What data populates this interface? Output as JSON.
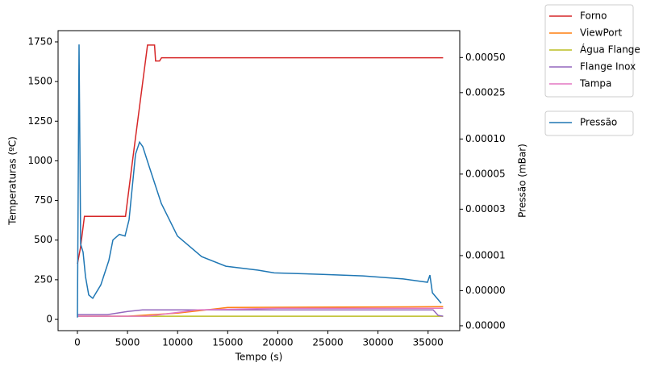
{
  "chart_data": {
    "type": "line",
    "xlabel": "Tempo (s)",
    "ylabel": "Temperaturas (ºC)",
    "y2label": "Pressão (mBar)",
    "xlim": [
      -1930,
      38160
    ],
    "xticks": [
      0,
      5000,
      10000,
      15000,
      20000,
      25000,
      30000,
      35000
    ],
    "ylim": [
      -71,
      1821
    ],
    "yticks": [
      0,
      250,
      500,
      750,
      1000,
      1250,
      1500,
      1750
    ],
    "y2scale": "log",
    "y2lim": [
      2.27e-06,
      0.00085
    ],
    "y2ticks": [
      {
        "value": 0.0005,
        "label": "0.00050"
      },
      {
        "value": 0.00025,
        "label": "0.00025"
      },
      {
        "value": 0.0001,
        "label": "0.00010"
      },
      {
        "value": 5e-05,
        "label": "0.00005"
      },
      {
        "value": 2.5e-05,
        "label": "0.00003"
      },
      {
        "value": 1e-05,
        "label": "0.00001"
      },
      {
        "value": 5e-06,
        "label": "0.00000"
      },
      {
        "value": 2.5e-06,
        "label": "0.00000"
      }
    ],
    "legend": "outside upper right",
    "series": [
      {
        "name": "Forno",
        "color": "#d62728",
        "x": [
          0,
          300,
          700,
          4800,
          5500,
          7000,
          7700,
          7800,
          8200,
          8400,
          36500
        ],
        "values": [
          350,
          450,
          650,
          650,
          1000,
          1730,
          1730,
          1630,
          1630,
          1650,
          1650
        ]
      },
      {
        "name": "ViewPort",
        "color": "#ff7f0e",
        "x": [
          0,
          5000,
          10000,
          15000,
          36500
        ],
        "values": [
          20,
          20,
          40,
          75,
          80
        ]
      },
      {
        "name": "Água Flange",
        "color": "#bcbd22",
        "x": [
          0,
          36500
        ],
        "values": [
          20,
          20
        ]
      },
      {
        "name": "Flange Inox",
        "color": "#9467bd",
        "x": [
          0,
          3000,
          5000,
          6500,
          10000,
          35500,
          36000,
          36500
        ],
        "values": [
          30,
          30,
          50,
          60,
          60,
          60,
          25,
          20
        ]
      },
      {
        "name": "Tampa",
        "color": "#e377c2",
        "x": [
          0,
          7000,
          12000,
          20000,
          36500
        ],
        "values": [
          20,
          20,
          60,
          70,
          70
        ]
      },
      {
        "name": "Pressão",
        "color": "#1f77b4",
        "axis": "y2",
        "x": [
          0,
          161,
          322,
          564,
          805,
          1127,
          1530,
          2335,
          3140,
          3543,
          4187,
          4750,
          5153,
          5797,
          6200,
          6522,
          7166,
          8374,
          9984,
          12400,
          14815,
          18035,
          19646,
          24476,
          28502,
          32528,
          34943,
          35185,
          35427,
          36312
        ],
        "values": [
          2.94e-06,
          0.000647,
          1.25e-05,
          1.07e-05,
          6.6e-06,
          4.6e-06,
          4.3e-06,
          5.6e-06,
          9.1e-06,
          1.36e-05,
          1.52e-05,
          1.47e-05,
          2.03e-05,
          7.4e-05,
          9.4e-05,
          8.6e-05,
          5.8e-05,
          2.8e-05,
          1.47e-05,
          9.8e-06,
          8.1e-06,
          7.5e-06,
          7.1e-06,
          6.9e-06,
          6.7e-06,
          6.3e-06,
          5.9e-06,
          6.8e-06,
          4.8e-06,
          3.9e-06
        ]
      }
    ]
  }
}
